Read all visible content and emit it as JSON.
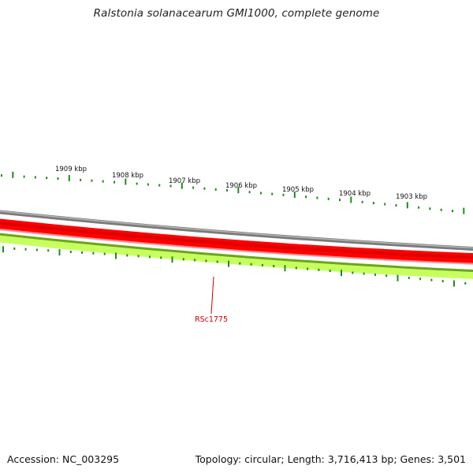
{
  "title": "Ralstonia solanacearum GMI1000, complete genome",
  "footer": {
    "accession": "Accession: NC_003295",
    "info": "Topology: circular; Length: 3,716,413 bp; Genes: 3,501"
  },
  "genome_view": {
    "tick_labels": [
      "1909 kbp",
      "1908 kbp",
      "1907 kbp",
      "1906 kbp",
      "1905 kbp",
      "1904 kbp",
      "1903 kbp"
    ],
    "gene_label": "RSc1775",
    "colors": {
      "backbone": "#808080",
      "forward_features": "#ff0000",
      "reverse_features": "#ccff66",
      "tick_marks": "#1f8a1f",
      "gene_label": "#cc0000"
    }
  }
}
